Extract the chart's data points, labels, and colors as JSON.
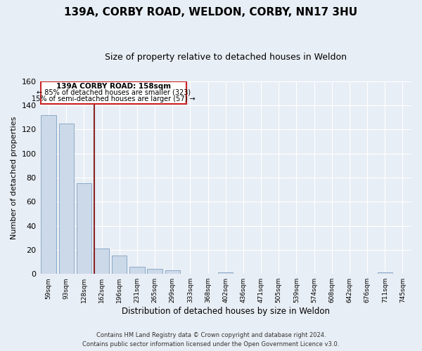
{
  "title": "139A, CORBY ROAD, WELDON, CORBY, NN17 3HU",
  "subtitle": "Size of property relative to detached houses in Weldon",
  "xlabel": "Distribution of detached houses by size in Weldon",
  "ylabel": "Number of detached properties",
  "bar_labels": [
    "59sqm",
    "93sqm",
    "128sqm",
    "162sqm",
    "196sqm",
    "231sqm",
    "265sqm",
    "299sqm",
    "333sqm",
    "368sqm",
    "402sqm",
    "436sqm",
    "471sqm",
    "505sqm",
    "539sqm",
    "574sqm",
    "608sqm",
    "642sqm",
    "676sqm",
    "711sqm",
    "745sqm"
  ],
  "bar_values": [
    132,
    125,
    75,
    21,
    15,
    6,
    4,
    3,
    0,
    0,
    1,
    0,
    0,
    0,
    0,
    0,
    0,
    0,
    0,
    1,
    0
  ],
  "bar_color": "#ccd9e8",
  "bar_edge_color": "#8aaac8",
  "ylim": [
    0,
    160
  ],
  "yticks": [
    0,
    20,
    40,
    60,
    80,
    100,
    120,
    140,
    160
  ],
  "annotation_title": "139A CORBY ROAD: 158sqm",
  "annotation_line1": "← 85% of detached houses are smaller (323)",
  "annotation_line2": "15% of semi-detached houses are larger (57) →",
  "footer_line1": "Contains HM Land Registry data © Crown copyright and database right 2024.",
  "footer_line2": "Contains public sector information licensed under the Open Government Licence v3.0.",
  "background_color": "#e8eef5",
  "plot_background": "#e8eef5",
  "grid_color": "#ffffff",
  "title_fontsize": 11,
  "subtitle_fontsize": 9,
  "annotation_box_edge": "#cc2222",
  "vline_color": "#882222"
}
